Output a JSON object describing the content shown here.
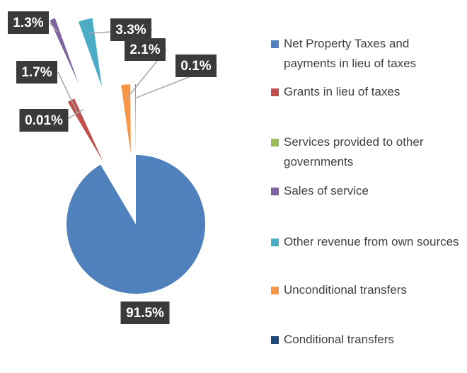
{
  "chart_data": {
    "type": "pie",
    "categories": [
      "Net Property Taxes and payments in lieu of taxes",
      "Grants in lieu of taxes",
      "Services provided to other governments",
      "Sales of service",
      "Other revenue from own sources",
      "Unconditional transfers",
      "Conditional transfers"
    ],
    "values": [
      91.5,
      1.7,
      0.01,
      1.3,
      3.3,
      2.1,
      0.1
    ],
    "value_labels": [
      "91.5%",
      "1.7%",
      "0.01%",
      "1.3%",
      "3.3%",
      "2.1%",
      "0.1%"
    ],
    "colors": [
      "#4f81bd",
      "#c0504d",
      "#9bbb59",
      "#8064a2",
      "#4bacc6",
      "#f79646",
      "#1f497d"
    ],
    "legend": "right"
  }
}
